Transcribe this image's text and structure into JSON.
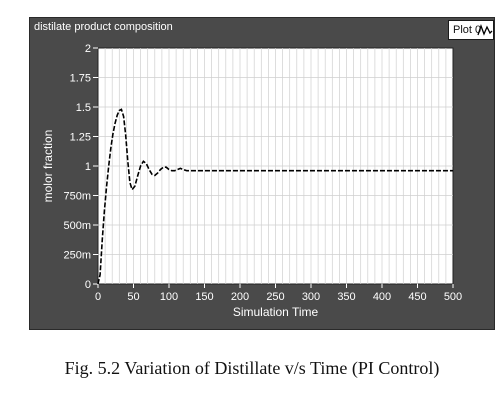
{
  "panel": {
    "title": "distilate product composition",
    "legend_label": "Plot 0"
  },
  "caption": "Fig. 5.2 Variation of Distillate v/s Time (PI Control)",
  "chart_data": {
    "type": "line",
    "title": "distilate product composition",
    "xlabel": "Simulation Time",
    "ylabel": "molor fraction",
    "xlim": [
      0,
      500
    ],
    "ylim": [
      0,
      2
    ],
    "x_ticks": [
      0,
      50,
      100,
      150,
      200,
      250,
      300,
      350,
      400,
      450,
      500
    ],
    "x_tick_labels": [
      "0",
      "50",
      "100",
      "150",
      "200",
      "250",
      "300",
      "350",
      "400",
      "450",
      "500"
    ],
    "y_ticks": [
      0,
      0.25,
      0.5,
      0.75,
      1,
      1.25,
      1.5,
      1.75,
      2
    ],
    "y_tick_labels": [
      "0",
      "250m",
      "500m",
      "750m",
      "1",
      "1.25",
      "1.5",
      "1.75",
      "2"
    ],
    "grid": true,
    "series": [
      {
        "name": "Plot 0",
        "x": [
          0,
          3,
          6,
          9,
          12,
          15,
          18,
          21,
          24,
          27,
          30,
          33,
          36,
          39,
          42,
          45,
          48,
          52,
          56,
          60,
          64,
          68,
          72,
          76,
          80,
          84,
          88,
          92,
          96,
          100,
          104,
          108,
          112,
          116,
          120,
          125,
          130,
          135,
          140,
          500
        ],
        "y": [
          0,
          0.08,
          0.38,
          0.62,
          0.82,
          1.0,
          1.15,
          1.27,
          1.36,
          1.43,
          1.47,
          1.48,
          1.42,
          1.26,
          1.04,
          0.86,
          0.8,
          0.83,
          0.92,
          1.0,
          1.04,
          1.02,
          0.97,
          0.93,
          0.92,
          0.94,
          0.97,
          0.99,
          0.99,
          0.97,
          0.96,
          0.96,
          0.97,
          0.98,
          0.97,
          0.96,
          0.96,
          0.96,
          0.96,
          0.96
        ]
      }
    ],
    "colors": {
      "panel": "#4a4a4a",
      "plot_bg": "#ffffff",
      "grid": "#cfcfcf",
      "line": "#000000",
      "text": "#ffffff"
    }
  }
}
